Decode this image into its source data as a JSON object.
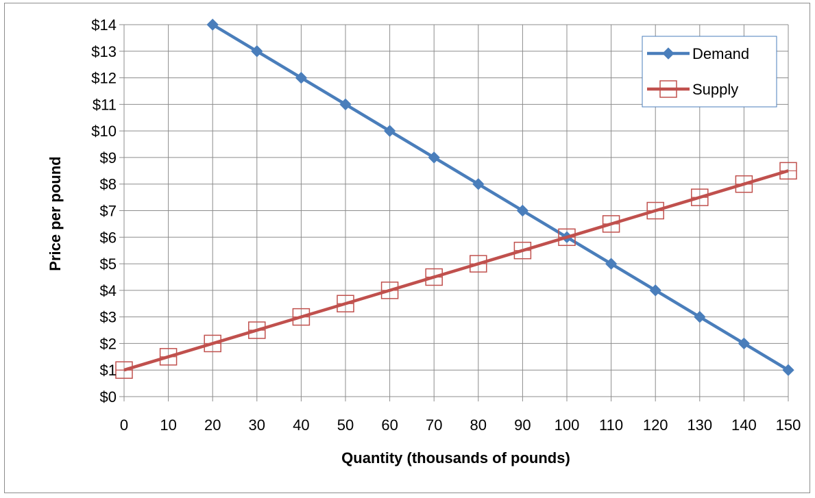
{
  "chart_data": {
    "type": "line",
    "title": "",
    "xlabel": "Quantity (thousands of pounds)",
    "ylabel": "Price per pound",
    "x": [
      0,
      10,
      20,
      30,
      40,
      50,
      60,
      70,
      80,
      90,
      100,
      110,
      120,
      130,
      140,
      150
    ],
    "x_tick_labels": [
      "0",
      "10",
      "20",
      "30",
      "40",
      "50",
      "60",
      "70",
      "80",
      "90",
      "100",
      "110",
      "120",
      "130",
      "140",
      "150"
    ],
    "y_tick_labels": [
      "$0",
      "$1",
      "$2",
      "$3",
      "$4",
      "$5",
      "$6",
      "$7",
      "$8",
      "$9",
      "$10",
      "$11",
      "$12",
      "$13",
      "$14"
    ],
    "xlim": [
      0,
      150
    ],
    "ylim": [
      0,
      14
    ],
    "grid": true,
    "legend_position": "top-right",
    "series": [
      {
        "name": "Demand",
        "color": "#4a7ebb",
        "marker": "diamond-filled",
        "points": [
          [
            20,
            14
          ],
          [
            30,
            13
          ],
          [
            40,
            12
          ],
          [
            50,
            11
          ],
          [
            60,
            10
          ],
          [
            70,
            9
          ],
          [
            80,
            8
          ],
          [
            90,
            7
          ],
          [
            100,
            6
          ],
          [
            110,
            5
          ],
          [
            120,
            4
          ],
          [
            130,
            3
          ],
          [
            140,
            2
          ],
          [
            150,
            1
          ]
        ]
      },
      {
        "name": "Supply",
        "color": "#c0504d",
        "marker": "square-open",
        "points": [
          [
            0,
            1
          ],
          [
            10,
            1.5
          ],
          [
            20,
            2
          ],
          [
            30,
            2.5
          ],
          [
            40,
            3
          ],
          [
            50,
            3.5
          ],
          [
            60,
            4
          ],
          [
            70,
            4.5
          ],
          [
            80,
            5
          ],
          [
            90,
            5.5
          ],
          [
            100,
            6
          ],
          [
            110,
            6.5
          ],
          [
            120,
            7
          ],
          [
            130,
            7.5
          ],
          [
            140,
            8
          ],
          [
            150,
            8.5
          ]
        ]
      }
    ]
  }
}
